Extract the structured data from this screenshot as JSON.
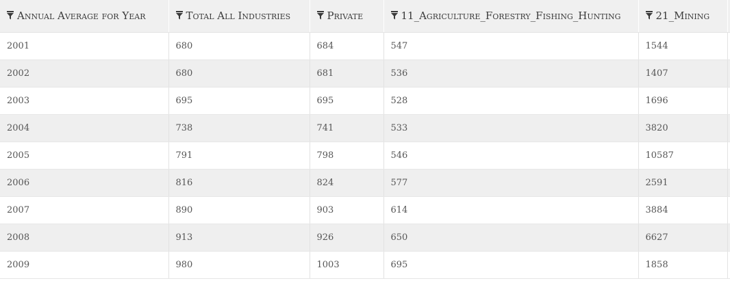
{
  "table": {
    "columns": [
      {
        "label": "Annual Average for Year",
        "icon": "filter-icon"
      },
      {
        "label": "Total All Industries",
        "icon": "filter-icon"
      },
      {
        "label": "Private",
        "icon": "filter-icon"
      },
      {
        "label": "11_Agriculture_Forestry_Fishing_Hunting",
        "icon": "filter-icon"
      },
      {
        "label": "21_Mining",
        "icon": "filter-icon"
      }
    ],
    "rows": [
      [
        "2001",
        "680",
        "684",
        "547",
        "1544"
      ],
      [
        "2002",
        "680",
        "681",
        "536",
        "1407"
      ],
      [
        "2003",
        "695",
        "695",
        "528",
        "1696"
      ],
      [
        "2004",
        "738",
        "741",
        "533",
        "3820"
      ],
      [
        "2005",
        "791",
        "798",
        "546",
        "10587"
      ],
      [
        "2006",
        "816",
        "824",
        "577",
        "2591"
      ],
      [
        "2007",
        "890",
        "903",
        "614",
        "3884"
      ],
      [
        "2008",
        "913",
        "926",
        "650",
        "6627"
      ],
      [
        "2009",
        "980",
        "1003",
        "695",
        "1858"
      ]
    ]
  },
  "colors": {
    "header_bg": "#f0f0f0",
    "row_alt_bg": "#efefef",
    "text": "#555555"
  }
}
